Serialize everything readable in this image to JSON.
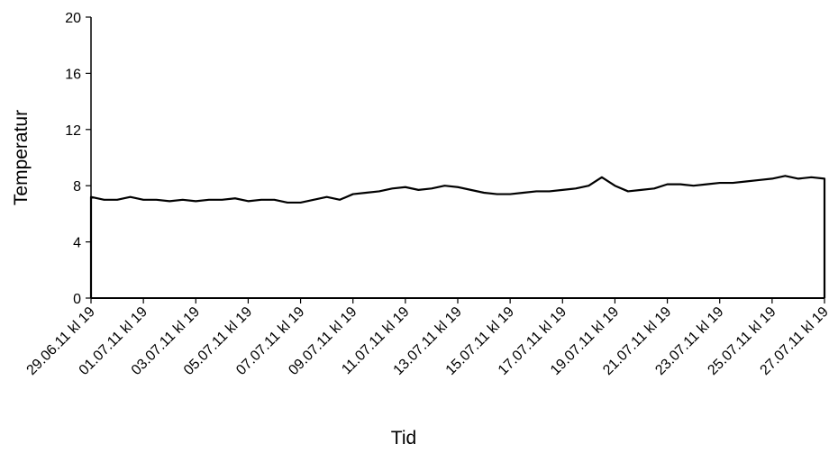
{
  "chart_data": {
    "type": "line",
    "title": "",
    "xlabel": "Tid",
    "ylabel": "Temperatur",
    "ylim": [
      0,
      20
    ],
    "yticks": [
      0,
      4,
      8,
      12,
      16,
      20
    ],
    "x_start": "29.06.11 kl 19",
    "x_end": "27.07.11 kl 19",
    "xticks": [
      "29.06.11 kl 19",
      "01.07.11 kl 19",
      "03.07.11 kl 19",
      "05.07.11 kl 19",
      "07.07.11 kl 19",
      "09.07.11 kl 19",
      "11.07.11 kl 19",
      "13.07.11 kl 19",
      "15.07.11 kl 19",
      "17.07.11 kl 19",
      "19.07.11 kl 19",
      "21.07.11 kl 19",
      "23.07.11 kl 19",
      "25.07.11 kl 19",
      "27.07.11 kl 19"
    ],
    "grid": false,
    "legend": "none",
    "line_color": "#000000",
    "series": [
      {
        "x": [
          "29.06.11 kl 19",
          "30.06.11 kl 07",
          "30.06.11 kl 19",
          "01.07.11 kl 07",
          "01.07.11 kl 19",
          "02.07.11 kl 07",
          "02.07.11 kl 19",
          "03.07.11 kl 07",
          "03.07.11 kl 19",
          "04.07.11 kl 07",
          "04.07.11 kl 19",
          "05.07.11 kl 07",
          "05.07.11 kl 19",
          "06.07.11 kl 07",
          "06.07.11 kl 19",
          "07.07.11 kl 07",
          "07.07.11 kl 19",
          "08.07.11 kl 07",
          "08.07.11 kl 19",
          "09.07.11 kl 07",
          "09.07.11 kl 19",
          "10.07.11 kl 07",
          "10.07.11 kl 19",
          "11.07.11 kl 07",
          "11.07.11 kl 19",
          "12.07.11 kl 07",
          "12.07.11 kl 19",
          "13.07.11 kl 07",
          "13.07.11 kl 19",
          "14.07.11 kl 07",
          "14.07.11 kl 19",
          "15.07.11 kl 07",
          "15.07.11 kl 19",
          "16.07.11 kl 07",
          "16.07.11 kl 19",
          "17.07.11 kl 07",
          "17.07.11 kl 19",
          "18.07.11 kl 07",
          "18.07.11 kl 19",
          "19.07.11 kl 07",
          "19.07.11 kl 19",
          "20.07.11 kl 07",
          "20.07.11 kl 19",
          "21.07.11 kl 07",
          "21.07.11 kl 19",
          "22.07.11 kl 07",
          "22.07.11 kl 19",
          "23.07.11 kl 07",
          "23.07.11 kl 19",
          "24.07.11 kl 07",
          "24.07.11 kl 19",
          "25.07.11 kl 07",
          "25.07.11 kl 19",
          "26.07.11 kl 07",
          "26.07.11 kl 19",
          "27.07.11 kl 07",
          "27.07.11 kl 19"
        ],
        "y": [
          7.2,
          7.0,
          7.0,
          7.2,
          7.0,
          7.0,
          6.9,
          7.0,
          6.9,
          7.0,
          7.0,
          7.1,
          6.9,
          7.0,
          7.0,
          6.8,
          6.8,
          7.0,
          7.2,
          7.0,
          7.4,
          7.5,
          7.6,
          7.8,
          7.9,
          7.7,
          7.8,
          8.0,
          7.9,
          7.7,
          7.5,
          7.4,
          7.4,
          7.5,
          7.6,
          7.6,
          7.7,
          7.8,
          8.0,
          8.6,
          8.0,
          7.6,
          7.7,
          7.8,
          8.1,
          8.1,
          8.0,
          8.1,
          8.2,
          8.2,
          8.3,
          8.4,
          8.5,
          8.7,
          8.5,
          8.6,
          8.5
        ]
      }
    ]
  }
}
